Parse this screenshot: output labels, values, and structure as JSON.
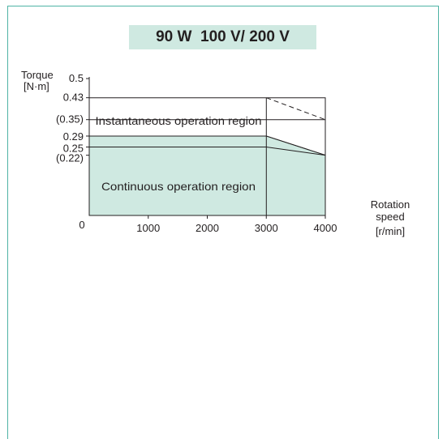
{
  "chart_data": {
    "type": "area",
    "title": "90 W  100 V/ 200 V",
    "ylabel_lines": [
      "Torque",
      "[N·m]"
    ],
    "xlabel_lines": [
      "Rotation",
      "speed",
      "[r/min]"
    ],
    "origin_label": "0",
    "xlim": [
      0,
      4000
    ],
    "ylim": [
      0,
      0.5
    ],
    "x_ticks": [
      {
        "value": 1000,
        "label": "1000"
      },
      {
        "value": 2000,
        "label": "2000"
      },
      {
        "value": 3000,
        "label": "3000"
      },
      {
        "value": 4000,
        "label": "4000"
      }
    ],
    "y_ticks": [
      {
        "value": 0.5,
        "label": "0.5"
      },
      {
        "value": 0.43,
        "label": "0.43"
      },
      {
        "value": 0.35,
        "label": "(0.35)"
      },
      {
        "value": 0.29,
        "label": "0.29"
      },
      {
        "value": 0.25,
        "label": "0.25"
      },
      {
        "value": 0.22,
        "label": "(0.22)"
      }
    ],
    "regions": [
      {
        "name": "Instantaneous operation region",
        "label": "Instantaneous operation region",
        "fill": "#ffffff",
        "points": [
          [
            0,
            0.43
          ],
          [
            4000,
            0.43
          ],
          [
            4000,
            0.22
          ],
          [
            3000,
            0.29
          ],
          [
            0,
            0.29
          ]
        ]
      },
      {
        "name": "Continuous operation region",
        "label": "Continuous operation region",
        "fill": "#cfe9e1",
        "points": [
          [
            0,
            0
          ],
          [
            4000,
            0
          ],
          [
            4000,
            0.22
          ],
          [
            3000,
            0.29
          ],
          [
            0,
            0.29
          ]
        ]
      }
    ],
    "reference_lines": [
      {
        "name": "instantaneous-100v-line",
        "points": [
          [
            0,
            0.35
          ],
          [
            4000,
            0.35
          ]
        ],
        "style": "solid"
      },
      {
        "name": "continuous-100v-line",
        "points": [
          [
            0,
            0.25
          ],
          [
            3000,
            0.25
          ],
          [
            4000,
            0.22
          ]
        ],
        "style": "solid"
      },
      {
        "name": "instantaneous-200v-dashed",
        "points": [
          [
            3000,
            0.43
          ],
          [
            4000,
            0.35
          ]
        ],
        "style": "dashed"
      },
      {
        "name": "speed-3000-divider",
        "points": [
          [
            3000,
            0
          ],
          [
            3000,
            0.43
          ]
        ],
        "style": "solid"
      }
    ],
    "colors": {
      "frame": "#4fb3a5",
      "fill": "#cfe9e1",
      "ink": "#231f20"
    }
  }
}
